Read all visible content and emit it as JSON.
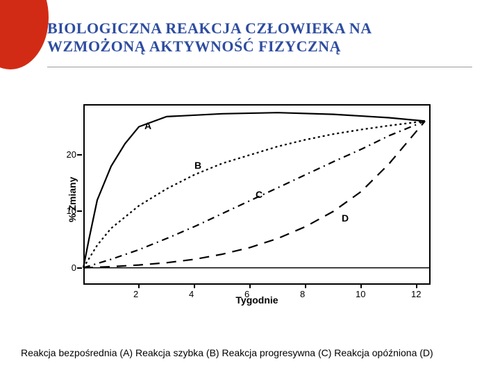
{
  "accent": {
    "color": "#d22b15"
  },
  "title": {
    "text": "BIOLOGICZNA REAKCJA CZŁOWIEKA NA WZMOŻONĄ AKTYWNOŚĆ FIZYCZNĄ",
    "color": "#2e4da0",
    "fontsize": 22
  },
  "rule_color": "#9a9a9a",
  "chart": {
    "type": "line",
    "background_color": "#ffffff",
    "axis_color": "#000000",
    "line_width": 2.2,
    "x": {
      "label": "Tygodnie",
      "min": 0,
      "max": 12.5,
      "ticks": [
        2,
        4,
        6,
        8,
        10,
        12
      ],
      "label_fontsize": 14,
      "tick_fontsize": 13
    },
    "y": {
      "label": "% Zmiany",
      "min": -3,
      "max": 29,
      "ticks": [
        0,
        10,
        20
      ],
      "label_fontsize": 14,
      "tick_fontsize": 13
    },
    "series": {
      "A": {
        "label": "A",
        "dash": "",
        "points": [
          [
            0,
            0
          ],
          [
            0.2,
            5
          ],
          [
            0.5,
            12
          ],
          [
            1,
            18
          ],
          [
            1.5,
            22
          ],
          [
            2,
            25
          ],
          [
            3,
            26.8
          ],
          [
            5,
            27.3
          ],
          [
            7,
            27.5
          ],
          [
            9,
            27.2
          ],
          [
            11,
            26.6
          ],
          [
            12.3,
            26
          ]
        ],
        "label_xy": [
          2.2,
          24.2
        ]
      },
      "B": {
        "label": "B",
        "dash": "3 4",
        "points": [
          [
            0,
            0
          ],
          [
            0.5,
            4
          ],
          [
            1,
            7
          ],
          [
            2,
            11
          ],
          [
            3,
            14
          ],
          [
            4,
            16.5
          ],
          [
            5,
            18.5
          ],
          [
            6,
            20
          ],
          [
            7,
            21.5
          ],
          [
            8,
            22.7
          ],
          [
            9,
            23.7
          ],
          [
            10,
            24.5
          ],
          [
            11,
            25.2
          ],
          [
            12.3,
            26
          ]
        ],
        "label_xy": [
          4.0,
          17.2
        ]
      },
      "C": {
        "label": "C",
        "dash": "10 6 2 6",
        "points": [
          [
            0,
            0
          ],
          [
            1,
            1.5
          ],
          [
            2,
            3.2
          ],
          [
            3,
            5.2
          ],
          [
            4,
            7.3
          ],
          [
            5,
            9.6
          ],
          [
            6,
            11.9
          ],
          [
            7,
            14.2
          ],
          [
            8,
            16.5
          ],
          [
            9,
            18.8
          ],
          [
            10,
            21.0
          ],
          [
            11,
            23.4
          ],
          [
            12.3,
            26
          ]
        ],
        "label_xy": [
          6.2,
          12.0
        ]
      },
      "D": {
        "label": "D",
        "dash": "14 10",
        "points": [
          [
            0,
            0
          ],
          [
            1,
            0.2
          ],
          [
            2,
            0.5
          ],
          [
            3,
            0.9
          ],
          [
            4,
            1.5
          ],
          [
            5,
            2.4
          ],
          [
            6,
            3.6
          ],
          [
            7,
            5.2
          ],
          [
            8,
            7.3
          ],
          [
            9,
            10.0
          ],
          [
            10,
            13.5
          ],
          [
            11,
            18.4
          ],
          [
            12.3,
            26
          ]
        ],
        "label_xy": [
          9.3,
          7.8
        ]
      }
    },
    "zero_line_y": 0
  },
  "caption": {
    "text": "Reakcja bezpośrednia (A) Reakcja szybka (B) Reakcja progresywna (C) Reakcja opóźniona (D)",
    "fontsize": 14
  }
}
